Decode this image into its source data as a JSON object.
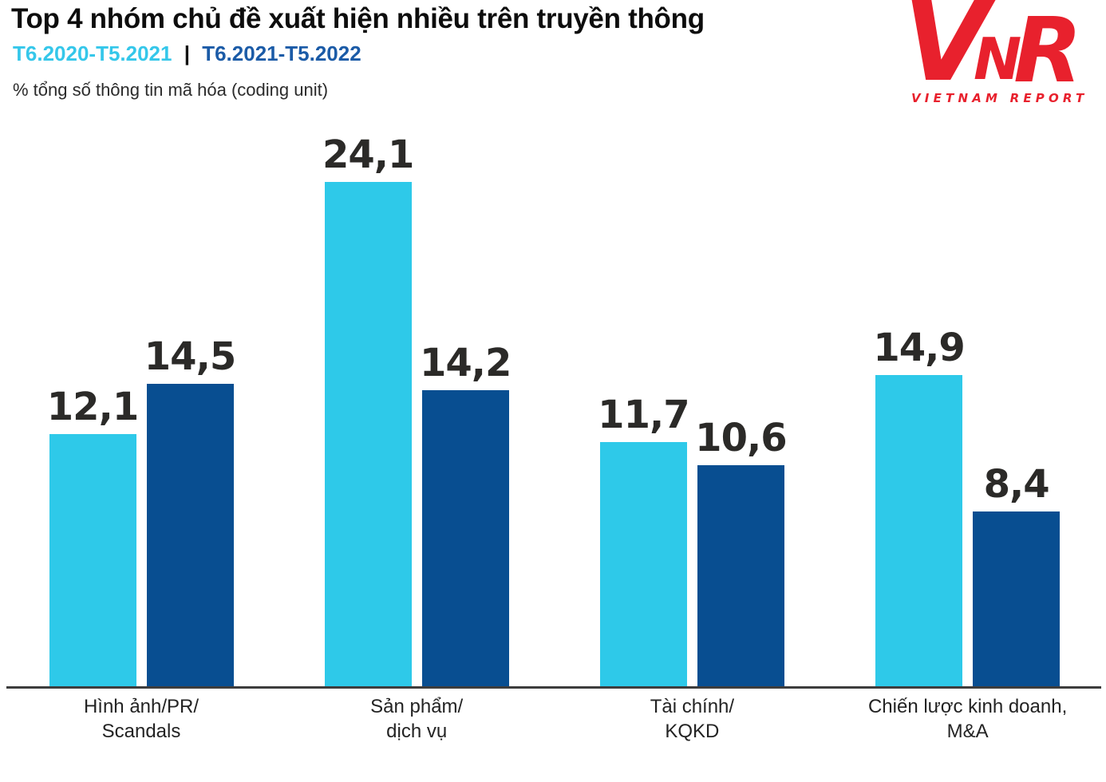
{
  "header": {
    "title": "Top 4 nhóm chủ đề xuất hiện nhiều trên truyền thông",
    "legend": {
      "series1": "T6.2020-T5.2021",
      "separator": "|",
      "series2": "T6.2021-T5.2022",
      "series1_color": "#35C7EA",
      "series2_color": "#1B5BA7"
    },
    "unit_label": "% tổng số thông tin mã hóa (coding unit)"
  },
  "logo": {
    "letter_v": "V",
    "letter_n": "N",
    "letter_r": "R",
    "subtitle": "VIETNAM REPORT",
    "color": "#E8212D"
  },
  "chart_data": {
    "type": "bar",
    "title": "Top 4 nhóm chủ đề xuất hiện nhiều trên truyền thông",
    "ylabel": "% tổng số thông tin mã hóa (coding unit)",
    "xlabel": "",
    "categories": [
      "Hình ảnh/PR/ Scandals",
      "Sản phẩm/ dịch vụ",
      "Tài chính/ KQKD",
      "Chiến lược kinh doanh, M&A"
    ],
    "categories_lines": [
      [
        "Hình ảnh/PR/",
        "Scandals"
      ],
      [
        "Sản phẩm/",
        "dịch vụ"
      ],
      [
        "Tài chính/",
        "KQKD"
      ],
      [
        "Chiến lược kinh doanh,",
        "M&A"
      ]
    ],
    "series": [
      {
        "name": "T6.2020-T5.2021",
        "color": "#2EC9E9",
        "values": [
          12.1,
          24.1,
          11.7,
          14.9
        ],
        "labels": [
          "12,1",
          "24,1",
          "11,7",
          "14,9"
        ]
      },
      {
        "name": "T6.2021-T5.2022",
        "color": "#084E91",
        "values": [
          14.5,
          14.2,
          10.6,
          8.4
        ],
        "labels": [
          "14,5",
          "14,2",
          "10,6",
          "8,4"
        ]
      }
    ],
    "ylim": [
      0,
      27.5
    ],
    "grid": false,
    "legend_position": "top-left",
    "value_label_color": "#2B2A28"
  }
}
